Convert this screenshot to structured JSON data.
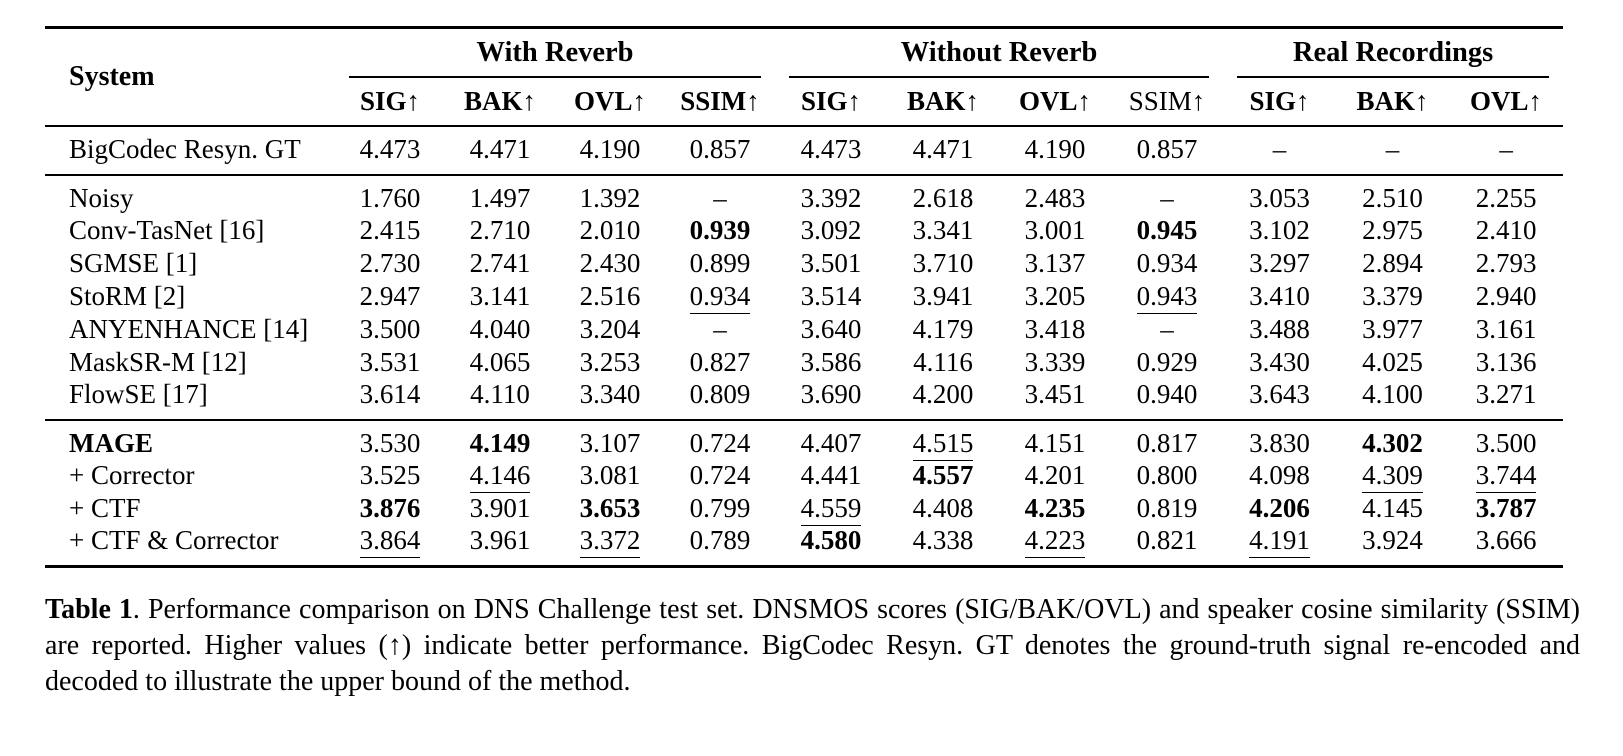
{
  "table": {
    "system_header": "System",
    "groups": [
      {
        "label": "With Reverb",
        "columns": [
          {
            "label": "SIG↑",
            "bold": true
          },
          {
            "label": "BAK↑",
            "bold": true
          },
          {
            "label": "OVL↑",
            "bold": true
          },
          {
            "label": "SSIM↑",
            "bold": true
          }
        ]
      },
      {
        "label": "Without Reverb",
        "columns": [
          {
            "label": "SIG↑",
            "bold": true
          },
          {
            "label": "BAK↑",
            "bold": true
          },
          {
            "label": "OVL↑",
            "bold": true
          },
          {
            "label": "SSIM↑",
            "bold": false
          }
        ]
      },
      {
        "label": "Real Recordings",
        "columns": [
          {
            "label": "SIG↑",
            "bold": true
          },
          {
            "label": "BAK↑",
            "bold": true
          },
          {
            "label": "OVL↑",
            "bold": true
          }
        ]
      }
    ],
    "rows": [
      {
        "system": "BigCodec Resyn. GT",
        "bold_label": false,
        "section": 0,
        "cells": [
          {
            "v": "4.473"
          },
          {
            "v": "4.471"
          },
          {
            "v": "4.190"
          },
          {
            "v": "0.857"
          },
          {
            "v": "4.473"
          },
          {
            "v": "4.471"
          },
          {
            "v": "4.190"
          },
          {
            "v": "0.857"
          },
          {
            "v": "–"
          },
          {
            "v": "–"
          },
          {
            "v": "–"
          }
        ]
      },
      {
        "system": "Noisy",
        "bold_label": false,
        "section": 1,
        "cells": [
          {
            "v": "1.760"
          },
          {
            "v": "1.497"
          },
          {
            "v": "1.392"
          },
          {
            "v": "–"
          },
          {
            "v": "3.392"
          },
          {
            "v": "2.618"
          },
          {
            "v": "2.483"
          },
          {
            "v": "–"
          },
          {
            "v": "3.053"
          },
          {
            "v": "2.510"
          },
          {
            "v": "2.255"
          }
        ]
      },
      {
        "system": "Conv-TasNet [16]",
        "bold_label": false,
        "section": 1,
        "cells": [
          {
            "v": "2.415"
          },
          {
            "v": "2.710"
          },
          {
            "v": "2.010"
          },
          {
            "v": "0.939",
            "s": "bold"
          },
          {
            "v": "3.092"
          },
          {
            "v": "3.341"
          },
          {
            "v": "3.001"
          },
          {
            "v": "0.945",
            "s": "bold"
          },
          {
            "v": "3.102"
          },
          {
            "v": "2.975"
          },
          {
            "v": "2.410"
          }
        ]
      },
      {
        "system": "SGMSE [1]",
        "bold_label": false,
        "section": 1,
        "cells": [
          {
            "v": "2.730"
          },
          {
            "v": "2.741"
          },
          {
            "v": "2.430"
          },
          {
            "v": "0.899"
          },
          {
            "v": "3.501"
          },
          {
            "v": "3.710"
          },
          {
            "v": "3.137"
          },
          {
            "v": "0.934"
          },
          {
            "v": "3.297"
          },
          {
            "v": "2.894"
          },
          {
            "v": "2.793"
          }
        ]
      },
      {
        "system": "StoRM [2]",
        "bold_label": false,
        "section": 1,
        "cells": [
          {
            "v": "2.947"
          },
          {
            "v": "3.141"
          },
          {
            "v": "2.516"
          },
          {
            "v": "0.934",
            "s": "underline"
          },
          {
            "v": "3.514"
          },
          {
            "v": "3.941"
          },
          {
            "v": "3.205"
          },
          {
            "v": "0.943",
            "s": "underline"
          },
          {
            "v": "3.410"
          },
          {
            "v": "3.379"
          },
          {
            "v": "2.940"
          }
        ]
      },
      {
        "system": "ANYENHANCE [14]",
        "bold_label": false,
        "section": 1,
        "cells": [
          {
            "v": "3.500"
          },
          {
            "v": "4.040"
          },
          {
            "v": "3.204"
          },
          {
            "v": "–"
          },
          {
            "v": "3.640"
          },
          {
            "v": "4.179"
          },
          {
            "v": "3.418"
          },
          {
            "v": "–"
          },
          {
            "v": "3.488"
          },
          {
            "v": "3.977"
          },
          {
            "v": "3.161"
          }
        ]
      },
      {
        "system": "MaskSR-M [12]",
        "bold_label": false,
        "section": 1,
        "cells": [
          {
            "v": "3.531"
          },
          {
            "v": "4.065"
          },
          {
            "v": "3.253"
          },
          {
            "v": "0.827"
          },
          {
            "v": "3.586"
          },
          {
            "v": "4.116"
          },
          {
            "v": "3.339"
          },
          {
            "v": "0.929"
          },
          {
            "v": "3.430"
          },
          {
            "v": "4.025"
          },
          {
            "v": "3.136"
          }
        ]
      },
      {
        "system": "FlowSE [17]",
        "bold_label": false,
        "section": 1,
        "cells": [
          {
            "v": "3.614"
          },
          {
            "v": "4.110"
          },
          {
            "v": "3.340"
          },
          {
            "v": "0.809"
          },
          {
            "v": "3.690"
          },
          {
            "v": "4.200"
          },
          {
            "v": "3.451"
          },
          {
            "v": "0.940"
          },
          {
            "v": "3.643"
          },
          {
            "v": "4.100"
          },
          {
            "v": "3.271"
          }
        ]
      },
      {
        "system": "MAGE",
        "bold_label": true,
        "section": 2,
        "cells": [
          {
            "v": "3.530"
          },
          {
            "v": "4.149",
            "s": "bold"
          },
          {
            "v": "3.107"
          },
          {
            "v": "0.724"
          },
          {
            "v": "4.407"
          },
          {
            "v": "4.515",
            "s": "underline"
          },
          {
            "v": "4.151"
          },
          {
            "v": "0.817"
          },
          {
            "v": "3.830"
          },
          {
            "v": "4.302",
            "s": "bold"
          },
          {
            "v": "3.500"
          }
        ]
      },
      {
        "system": "+ Corrector",
        "bold_label": false,
        "section": 2,
        "cells": [
          {
            "v": "3.525"
          },
          {
            "v": "4.146",
            "s": "underline"
          },
          {
            "v": "3.081"
          },
          {
            "v": "0.724"
          },
          {
            "v": "4.441"
          },
          {
            "v": "4.557",
            "s": "bold"
          },
          {
            "v": "4.201"
          },
          {
            "v": "0.800"
          },
          {
            "v": "4.098"
          },
          {
            "v": "4.309",
            "s": "underline"
          },
          {
            "v": "3.744",
            "s": "underline"
          }
        ]
      },
      {
        "system": "+ CTF",
        "bold_label": false,
        "section": 2,
        "cells": [
          {
            "v": "3.876",
            "s": "bold"
          },
          {
            "v": "3.901"
          },
          {
            "v": "3.653",
            "s": "bold"
          },
          {
            "v": "0.799"
          },
          {
            "v": "4.559",
            "s": "underline"
          },
          {
            "v": "4.408"
          },
          {
            "v": "4.235",
            "s": "bold"
          },
          {
            "v": "0.819"
          },
          {
            "v": "4.206",
            "s": "bold"
          },
          {
            "v": "4.145"
          },
          {
            "v": "3.787",
            "s": "bold"
          }
        ]
      },
      {
        "system": "+ CTF & Corrector",
        "bold_label": false,
        "section": 2,
        "cells": [
          {
            "v": "3.864",
            "s": "underline"
          },
          {
            "v": "3.961"
          },
          {
            "v": "3.372",
            "s": "underline"
          },
          {
            "v": "0.789"
          },
          {
            "v": "4.580",
            "s": "bold"
          },
          {
            "v": "4.338"
          },
          {
            "v": "4.223",
            "s": "underline"
          },
          {
            "v": "0.821"
          },
          {
            "v": "4.191",
            "s": "underline"
          },
          {
            "v": "3.924"
          },
          {
            "v": "3.666"
          }
        ]
      }
    ]
  },
  "caption": {
    "label": "Table 1",
    "text": ". Performance comparison on DNS Challenge test set.  DNSMOS scores (SIG/BAK/OVL) and speaker cosine similarity (SSIM) are reported.  Higher values (↑) indicate better performance.  BigCodec Resyn. GT denotes the ground-truth signal re-encoded and decoded to illustrate the upper bound of the method."
  }
}
